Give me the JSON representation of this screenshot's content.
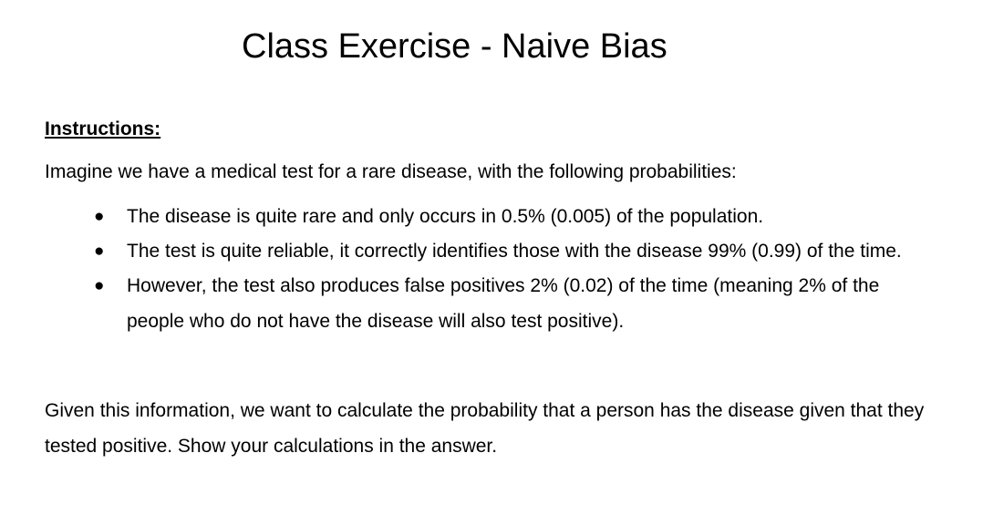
{
  "document": {
    "title": "Class Exercise - Naive Bias",
    "instructions_heading": "Instructions:",
    "intro": "Imagine we have a medical test for a rare disease, with the following probabilities:",
    "bullets": [
      "The disease is quite rare and only occurs in 0.5% (0.005) of the population.",
      "The test is quite reliable, it correctly identifies those with the disease 99% (0.99) of the time.",
      "However, the test also produces false positives 2% (0.02) of the time (meaning 2% of the people who do not have the disease will also test positive)."
    ],
    "bullet_symbol": "●",
    "question": "Given this information, we want to calculate the probability that a person has the disease given that they tested positive. Show your calculations in the answer."
  }
}
